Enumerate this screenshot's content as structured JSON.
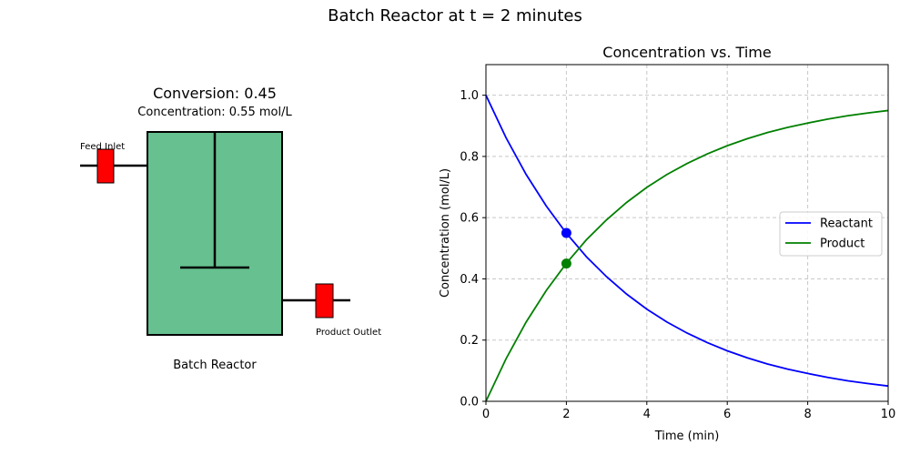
{
  "figure": {
    "title": "Batch Reactor at t = 2 minutes"
  },
  "reactor": {
    "conversion_text": "Conversion: 0.45",
    "concentration_text": "Concentration: 0.55 mol/L",
    "feed_label": "Feed Inlet",
    "outlet_label": "Product Outlet",
    "reactor_label": "Batch Reactor",
    "colors": {
      "vessel": "#66c08f",
      "valve": "#ff0000",
      "outline": "#000000"
    }
  },
  "chart_data": {
    "type": "line",
    "title": "Concentration vs. Time",
    "xlabel": "Time (min)",
    "ylabel": "Concentration (mol/L)",
    "xlim": [
      0,
      10
    ],
    "ylim": [
      0,
      1.1
    ],
    "xticks": [
      0,
      2,
      4,
      6,
      8,
      10
    ],
    "yticks": [
      0.0,
      0.2,
      0.4,
      0.6,
      0.8,
      1.0
    ],
    "xtick_labels": [
      "0",
      "2",
      "4",
      "6",
      "8",
      "10"
    ],
    "ytick_labels": [
      "0.0",
      "0.2",
      "0.4",
      "0.6",
      "0.8",
      "1.0"
    ],
    "grid": true,
    "legend_position": "center-right",
    "x": [
      0,
      0.5,
      1,
      1.5,
      2,
      2.5,
      3,
      3.5,
      4,
      4.5,
      5,
      5.5,
      6,
      6.5,
      7,
      7.5,
      8,
      8.5,
      9,
      9.5,
      10
    ],
    "series": [
      {
        "name": "Reactant",
        "color": "#0000ff",
        "values": [
          1.0,
          0.861,
          0.741,
          0.638,
          0.549,
          0.472,
          0.407,
          0.35,
          0.301,
          0.259,
          0.223,
          0.192,
          0.165,
          0.142,
          0.122,
          0.105,
          0.091,
          0.078,
          0.067,
          0.058,
          0.05
        ]
      },
      {
        "name": "Product",
        "color": "#008000",
        "values": [
          0.0,
          0.139,
          0.259,
          0.362,
          0.451,
          0.528,
          0.593,
          0.65,
          0.699,
          0.741,
          0.777,
          0.808,
          0.835,
          0.858,
          0.878,
          0.895,
          0.909,
          0.922,
          0.933,
          0.942,
          0.95
        ]
      }
    ],
    "markers": [
      {
        "series": "Reactant",
        "x": 2,
        "y": 0.55
      },
      {
        "series": "Product",
        "x": 2,
        "y": 0.45
      }
    ]
  }
}
